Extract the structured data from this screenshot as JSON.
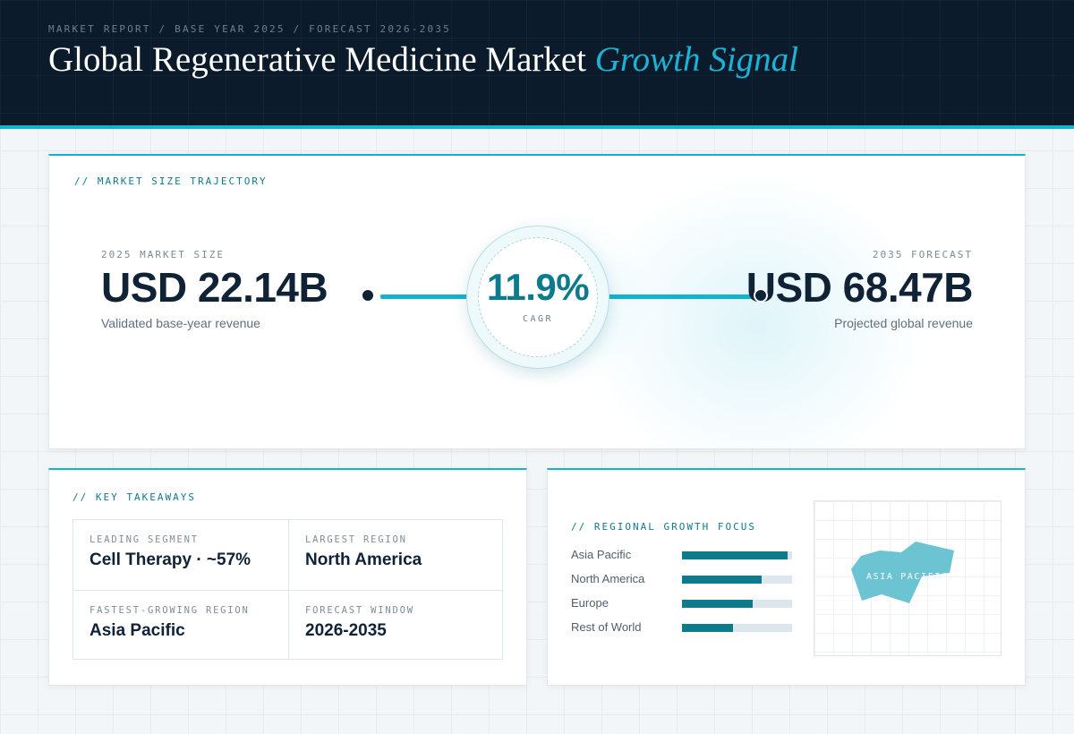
{
  "header": {
    "eyebrow": "MARKET REPORT / BASE YEAR 2025 / FORECAST 2026-2035",
    "title_main": "Global Regenerative Medicine Market",
    "title_accent": "Growth Signal"
  },
  "trajectory": {
    "label": "// MARKET SIZE TRAJECTORY",
    "base": {
      "label": "2025 MARKET SIZE",
      "value": "USD 22.14B",
      "sub": "Validated base-year revenue"
    },
    "forecast": {
      "label": "2035 FORECAST",
      "value": "USD 68.47B",
      "sub": "Projected global revenue"
    },
    "cagr": {
      "value": "11.9%",
      "label": "CAGR"
    }
  },
  "takeaways": {
    "label": "// KEY TAKEAWAYS",
    "items": [
      {
        "label": "LEADING SEGMENT",
        "value": "Cell Therapy · ~57%"
      },
      {
        "label": "LARGEST REGION",
        "value": "North America"
      },
      {
        "label": "FASTEST-GROWING REGION",
        "value": "Asia Pacific"
      },
      {
        "label": "FORECAST WINDOW",
        "value": "2026-2035"
      }
    ]
  },
  "regional": {
    "label": "// REGIONAL GROWTH FOCUS",
    "bars": [
      {
        "name": "Asia Pacific",
        "value": 0.96
      },
      {
        "name": "North America",
        "value": 0.72
      },
      {
        "name": "Europe",
        "value": 0.64
      },
      {
        "name": "Rest of World",
        "value": 0.46
      }
    ],
    "map_label": "ASIA PACIFIC"
  },
  "colors": {
    "accent": "#12b3cc",
    "bar": "#0c7b8c",
    "navy": "#0b1b2b",
    "map_region": "#6cc3d2"
  },
  "icons": {
    "map": "asia-pacific-region-shape"
  }
}
